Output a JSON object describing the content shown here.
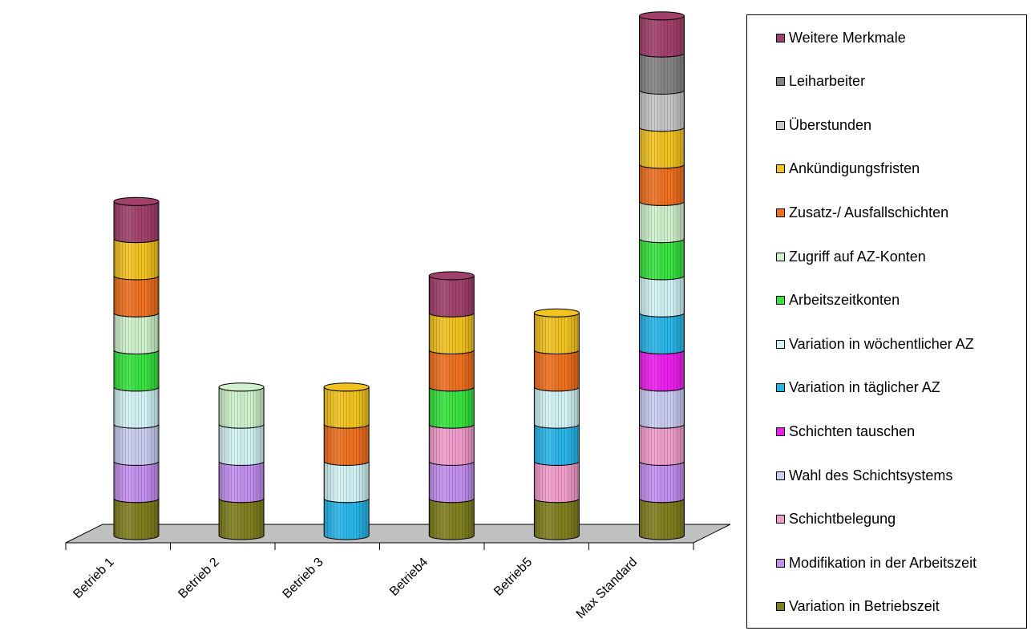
{
  "chart_data": {
    "type": "bar",
    "subtype": "stacked-3d-cylinder",
    "title": "",
    "xlabel": "",
    "ylabel": "",
    "legend_position": "right",
    "categories": [
      "Betrieb 1",
      "Betrieb 2",
      "Betrieb 3",
      "Betrieb4",
      "Betrieb5",
      "Max Standard"
    ],
    "series": [
      {
        "name": "Variation in Betriebszeit",
        "color": "#7f7f1f",
        "values": [
          1,
          1,
          0,
          1,
          1,
          1
        ]
      },
      {
        "name": "Modifikation in der Arbeitszeit",
        "color": "#c38ff0",
        "values": [
          1,
          1,
          0,
          1,
          0,
          1
        ]
      },
      {
        "name": "Schichtbelegung",
        "color": "#f29ccc",
        "values": [
          0,
          0,
          0,
          1,
          1,
          1
        ]
      },
      {
        "name": "Wahl des Schichtsystems",
        "color": "#c9cdf2",
        "values": [
          1,
          0,
          0,
          0,
          0,
          1
        ]
      },
      {
        "name": "Schichten tauschen",
        "color": "#ef1ef0",
        "values": [
          0,
          0,
          0,
          0,
          0,
          1
        ]
      },
      {
        "name": "Variation in täglicher AZ",
        "color": "#27b6ea",
        "values": [
          0,
          0,
          1,
          0,
          1,
          1
        ]
      },
      {
        "name": "Variation in wöchentlicher AZ",
        "color": "#d3f3f6",
        "values": [
          1,
          1,
          1,
          0,
          1,
          1
        ]
      },
      {
        "name": "Arbeitszeitkonten",
        "color": "#37e33f",
        "values": [
          1,
          0,
          0,
          1,
          0,
          1
        ]
      },
      {
        "name": "Zugriff auf AZ-Konten",
        "color": "#cff2cc",
        "values": [
          1,
          1,
          0,
          0,
          0,
          1
        ]
      },
      {
        "name": "Zusatz-/ Ausfallschichten",
        "color": "#f0701f",
        "values": [
          1,
          0,
          1,
          1,
          1,
          1
        ]
      },
      {
        "name": "Ankündigungsfristen",
        "color": "#f2c31e",
        "values": [
          1,
          0,
          1,
          1,
          1,
          1
        ]
      },
      {
        "name": "Überstunden",
        "color": "#c6c6c6",
        "values": [
          0,
          0,
          0,
          0,
          0,
          1
        ]
      },
      {
        "name": "Leiharbeiter",
        "color": "#848484",
        "values": [
          0,
          0,
          0,
          0,
          0,
          1
        ]
      },
      {
        "name": "Weitere Merkmale",
        "color": "#a2406c",
        "values": [
          1,
          0,
          0,
          1,
          0,
          1
        ]
      }
    ],
    "grid": false
  }
}
